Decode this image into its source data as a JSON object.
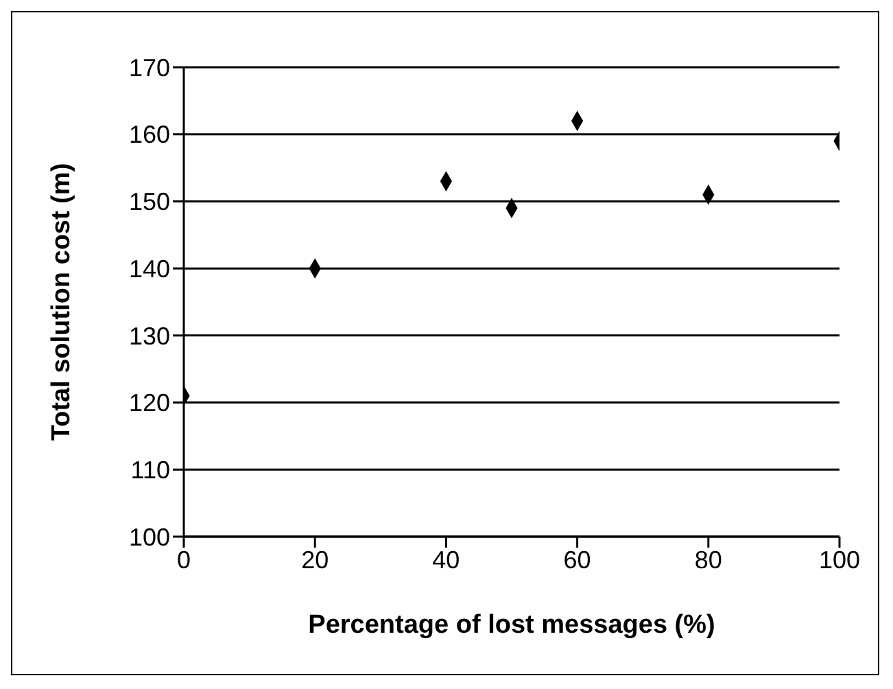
{
  "chart_data": {
    "type": "scatter",
    "xlabel": "Percentage of lost messages (%)",
    "ylabel": "Total solution cost (m)",
    "x": [
      0,
      20,
      40,
      50,
      60,
      80,
      100
    ],
    "values": [
      121,
      140,
      153,
      149,
      162,
      151,
      159
    ],
    "color": "#000000",
    "marker": "diamond",
    "xlim": [
      0,
      100
    ],
    "xticks": [
      0,
      20,
      40,
      60,
      80,
      100
    ],
    "ylim": [
      100,
      170
    ],
    "yticks": [
      100,
      110,
      120,
      130,
      140,
      150,
      160,
      170
    ],
    "grid": "y"
  }
}
